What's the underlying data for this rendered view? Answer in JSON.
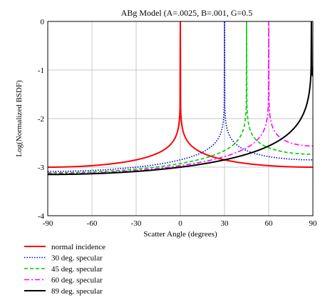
{
  "chart_data": {
    "type": "line",
    "title": "ABg Model (A=.0025, B=.001, G=0.5",
    "xlabel": "Scatter Angle (degrees)",
    "ylabel": "Log(Normalized BSDF)",
    "xlim": [
      -90,
      90
    ],
    "ylim": [
      -4,
      0
    ],
    "xticks": [
      -90,
      -60,
      -30,
      0,
      30,
      60,
      90
    ],
    "yticks": [
      0,
      -1,
      -2,
      -3,
      -4
    ],
    "grid": true,
    "legend_position": "below-left",
    "model": {
      "A": 0.0025,
      "B": 0.001,
      "G": 0.5
    },
    "series": [
      {
        "name": "normal incidence",
        "specular_deg": 0,
        "color": "#ff0000",
        "dash": "solid"
      },
      {
        "name": "30 deg. specular",
        "specular_deg": 30,
        "color": "#0000cc",
        "dash": "dotted"
      },
      {
        "name": "45 deg. specular",
        "specular_deg": 45,
        "color": "#00cc00",
        "dash": "dashed"
      },
      {
        "name": "60 deg. specular",
        "specular_deg": 60,
        "color": "#ff00ff",
        "dash": "dashdot"
      },
      {
        "name": "89 deg. specular",
        "specular_deg": 89,
        "color": "#000000",
        "dash": "solid"
      }
    ]
  }
}
